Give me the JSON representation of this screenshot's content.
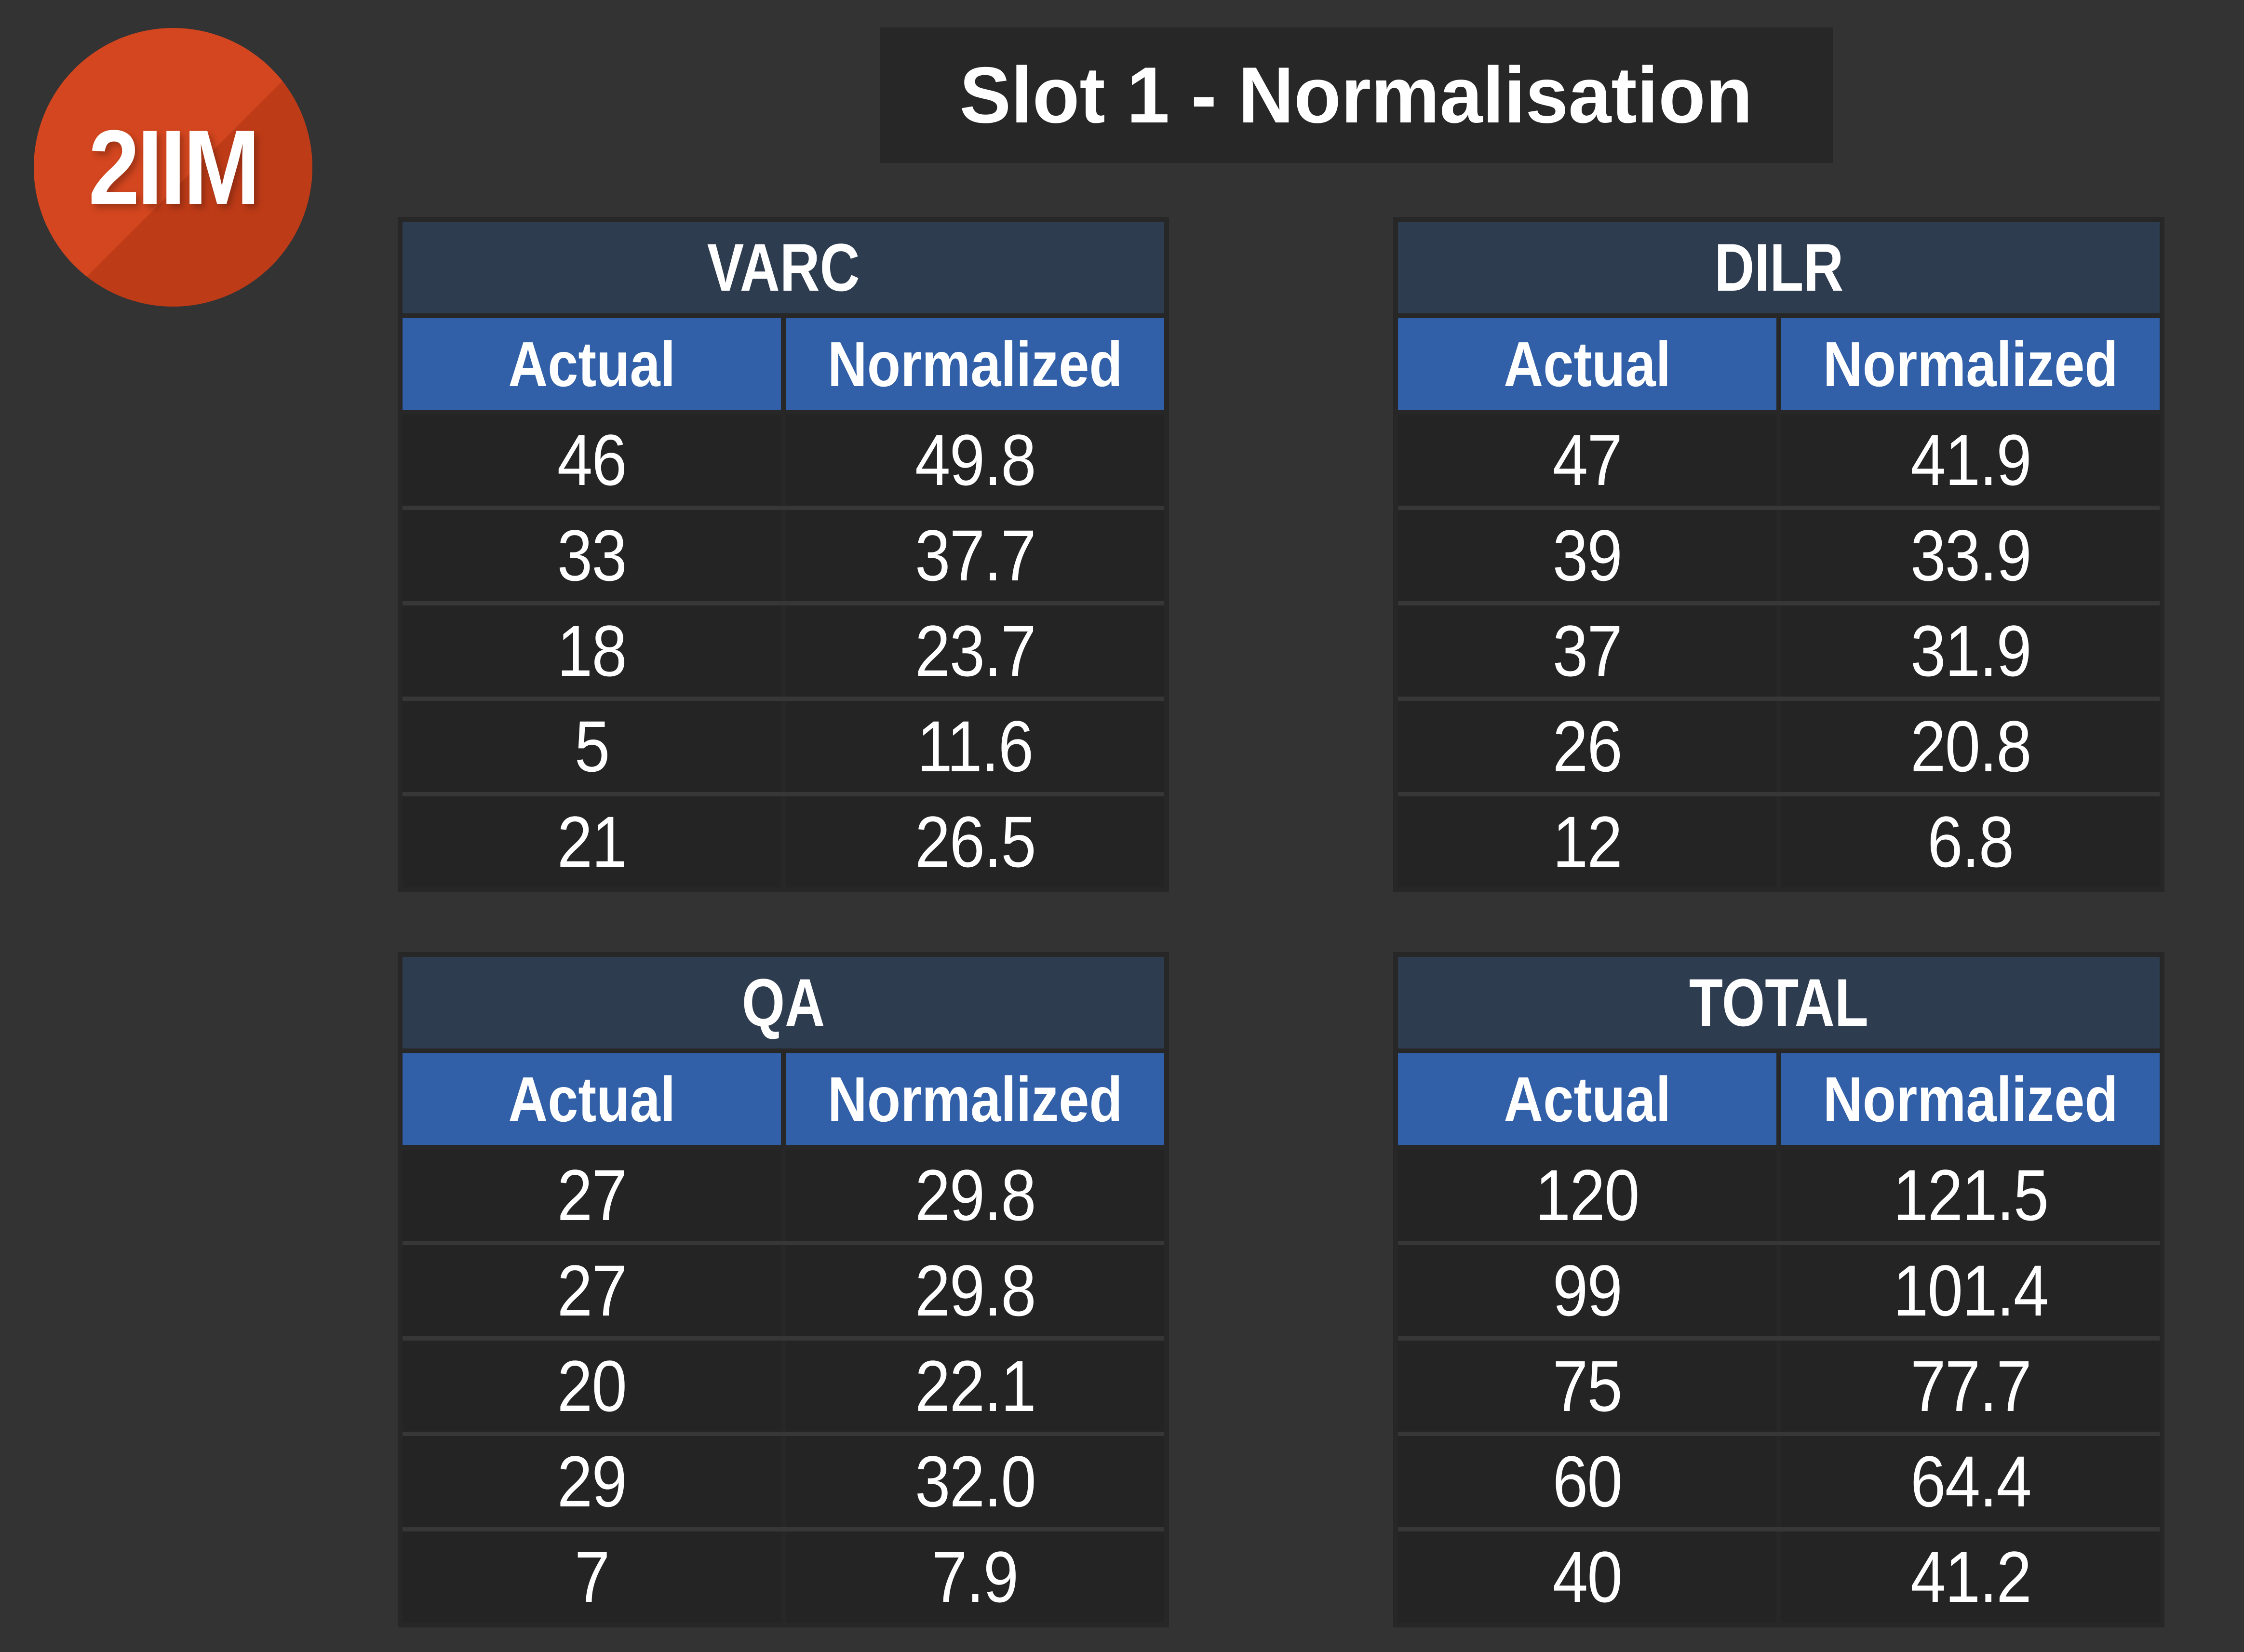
{
  "page": {
    "title": "Slot 1 - Normalisation",
    "logo_text": "2IIM"
  },
  "table_columns": {
    "col1": "Actual",
    "col2": "Normalized"
  },
  "tables": {
    "varc": {
      "title": "VARC",
      "rows": [
        [
          "46",
          "49.8"
        ],
        [
          "33",
          "37.7"
        ],
        [
          "18",
          "23.7"
        ],
        [
          "5",
          "11.6"
        ],
        [
          "21",
          "26.5"
        ]
      ]
    },
    "dilr": {
      "title": "DILR",
      "rows": [
        [
          "47",
          "41.9"
        ],
        [
          "39",
          "33.9"
        ],
        [
          "37",
          "31.9"
        ],
        [
          "26",
          "20.8"
        ],
        [
          "12",
          "6.8"
        ]
      ]
    },
    "qa": {
      "title": "QA",
      "rows": [
        [
          "27",
          "29.8"
        ],
        [
          "27",
          "29.8"
        ],
        [
          "20",
          "22.1"
        ],
        [
          "29",
          "32.0"
        ],
        [
          "7",
          "7.9"
        ]
      ]
    },
    "total": {
      "title": "TOTAL",
      "rows": [
        [
          "120",
          "121.5"
        ],
        [
          "99",
          "101.4"
        ],
        [
          "75",
          "77.7"
        ],
        [
          "60",
          "64.4"
        ],
        [
          "40",
          "41.2"
        ]
      ]
    }
  },
  "colors": {
    "page_background": "#333333",
    "title_plate_bg": "#272727",
    "table_title_bg": "#2E3C50",
    "column_header_bg": "#3160A8",
    "cell_bg": "#242424",
    "row_separator": "#373737",
    "text": "#FFFFFF",
    "logo_orange": "#D3461F",
    "logo_shadow_orange": "#BE3B17"
  }
}
